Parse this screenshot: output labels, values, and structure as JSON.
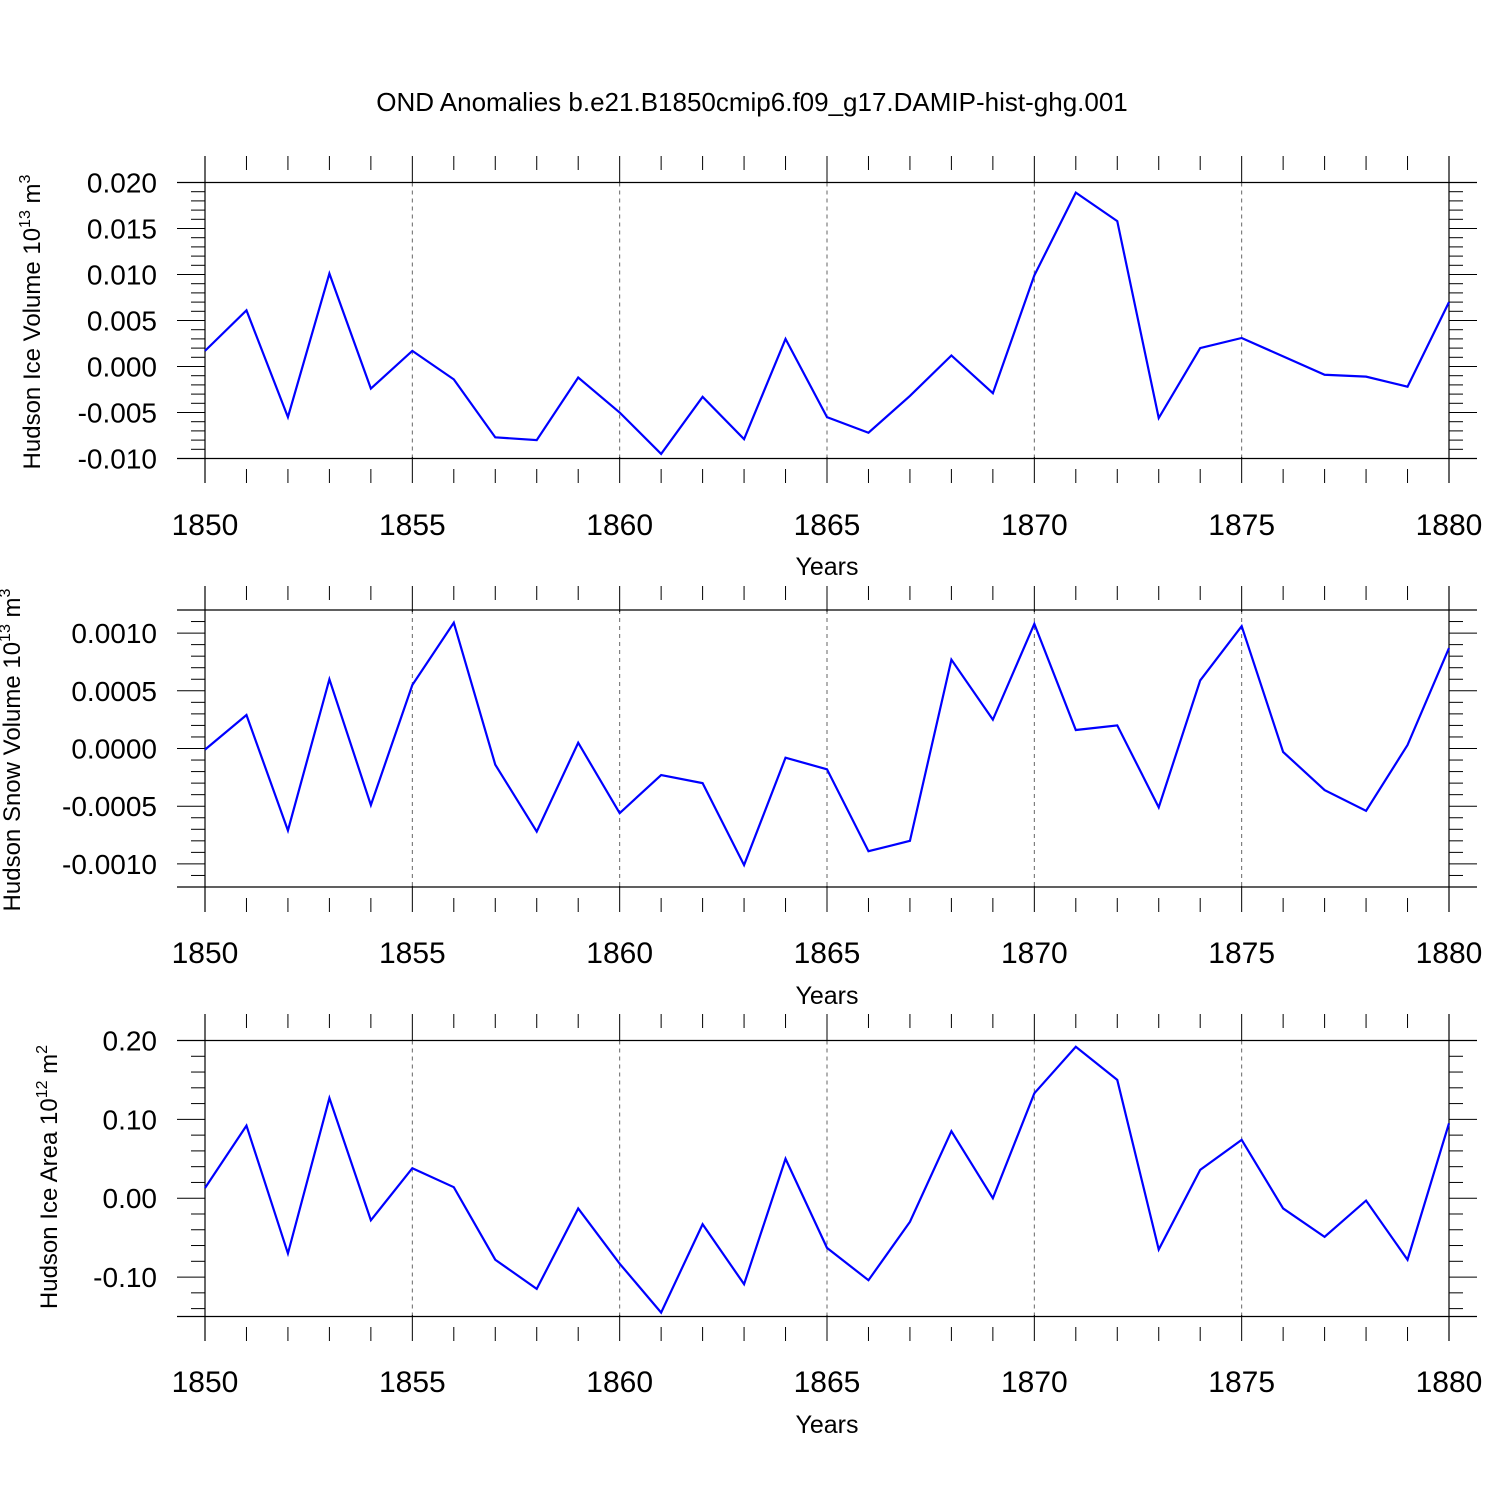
{
  "title": "OND Anomalies b.e21.B1850cmip6.f09_g17.DAMIP-hist-ghg.001",
  "chart_data": [
    {
      "type": "line",
      "title": "OND Anomalies b.e21.B1850cmip6.f09_g17.DAMIP-hist-ghg.001",
      "xlabel": "Years",
      "ylabel": "Hudson Ice Volume 10",
      "ylabel_exp": "13",
      "ylabel_unit": " m",
      "ylabel_unit_exp": "3",
      "x": [
        1850,
        1851,
        1852,
        1853,
        1854,
        1855,
        1856,
        1857,
        1858,
        1859,
        1860,
        1861,
        1862,
        1863,
        1864,
        1865,
        1866,
        1867,
        1868,
        1869,
        1870,
        1871,
        1872,
        1873,
        1874,
        1875,
        1876,
        1877,
        1878,
        1879,
        1880
      ],
      "series": [
        {
          "name": "Hudson Ice Volume",
          "color": "#0000ff",
          "values": [
            0.0017,
            0.0061,
            -0.0055,
            0.0101,
            -0.0024,
            0.0017,
            -0.0014,
            -0.0077,
            -0.008,
            -0.0012,
            -0.005,
            -0.0095,
            -0.0033,
            -0.0079,
            0.003,
            -0.0055,
            -0.0072,
            -0.0032,
            0.0012,
            -0.0029,
            0.0099,
            0.0189,
            0.0158,
            -0.0056,
            0.002,
            0.0031,
            0.0011,
            -0.0009,
            -0.0011,
            -0.0022,
            0.007
          ]
        }
      ],
      "xlim": [
        1850,
        1880
      ],
      "ylim": [
        -0.01,
        0.02
      ],
      "xticks": [
        "1850",
        "1855",
        "1860",
        "1865",
        "1870",
        "1875",
        "1880"
      ],
      "yticks": [
        "0.020",
        "0.015",
        "0.010",
        "0.005",
        "0.000",
        "-0.005",
        "-0.010"
      ],
      "ytick_values": [
        0.02,
        0.015,
        0.01,
        0.005,
        0.0,
        -0.005,
        -0.01
      ],
      "ref_lines": [
        0.02,
        -0.01
      ],
      "grid": "vertical dashed at major x ticks"
    },
    {
      "type": "line",
      "xlabel": "Years",
      "ylabel": "Hudson Snow Volume 10",
      "ylabel_exp": "13",
      "ylabel_unit": " m",
      "ylabel_unit_exp": "3",
      "x": [
        1850,
        1851,
        1852,
        1853,
        1854,
        1855,
        1856,
        1857,
        1858,
        1859,
        1860,
        1861,
        1862,
        1863,
        1864,
        1865,
        1866,
        1867,
        1868,
        1869,
        1870,
        1871,
        1872,
        1873,
        1874,
        1875,
        1876,
        1877,
        1878,
        1879,
        1880
      ],
      "series": [
        {
          "name": "Hudson Snow Volume",
          "color": "#0000ff",
          "values": [
            -1e-05,
            0.00029,
            -0.00071,
            0.0006,
            -0.00049,
            0.00055,
            0.00109,
            -0.00014,
            -0.00072,
            5e-05,
            -0.00056,
            -0.00023,
            -0.0003,
            -0.00101,
            -8e-05,
            -0.00018,
            -0.00089,
            -0.0008,
            0.00077,
            0.00025,
            0.00108,
            0.00016,
            0.0002,
            -0.00051,
            0.00059,
            0.00106,
            -3e-05,
            -0.00036,
            -0.00054,
            3e-05,
            0.00087
          ]
        }
      ],
      "xlim": [
        1850,
        1880
      ],
      "ylim": [
        -0.0012,
        0.0012
      ],
      "xticks": [
        "1850",
        "1855",
        "1860",
        "1865",
        "1870",
        "1875",
        "1880"
      ],
      "yticks": [
        "0.0010",
        "0.0005",
        "0.0000",
        "-0.0005",
        "-0.0010"
      ],
      "ytick_values": [
        0.001,
        0.0005,
        0.0,
        -0.0005,
        -0.001
      ],
      "ref_lines": [
        0.0012,
        -0.0012
      ],
      "grid": "vertical dashed at major x ticks"
    },
    {
      "type": "line",
      "xlabel": "Years",
      "ylabel": "Hudson Ice Area 10",
      "ylabel_exp": "12",
      "ylabel_unit": " m",
      "ylabel_unit_exp": "2",
      "x": [
        1850,
        1851,
        1852,
        1853,
        1854,
        1855,
        1856,
        1857,
        1858,
        1859,
        1860,
        1861,
        1862,
        1863,
        1864,
        1865,
        1866,
        1867,
        1868,
        1869,
        1870,
        1871,
        1872,
        1873,
        1874,
        1875,
        1876,
        1877,
        1878,
        1879,
        1880
      ],
      "series": [
        {
          "name": "Hudson Ice Area",
          "color": "#0000ff",
          "values": [
            0.013,
            0.092,
            -0.07,
            0.127,
            -0.028,
            0.038,
            0.014,
            -0.078,
            -0.115,
            -0.013,
            -0.083,
            -0.145,
            -0.033,
            -0.109,
            0.05,
            -0.063,
            -0.104,
            -0.03,
            0.085,
            0.0,
            0.133,
            0.192,
            0.15,
            -0.065,
            0.036,
            0.074,
            -0.013,
            -0.049,
            -0.003,
            -0.078,
            0.095
          ]
        }
      ],
      "xlim": [
        1850,
        1880
      ],
      "ylim": [
        -0.15,
        0.2
      ],
      "xticks": [
        "1850",
        "1855",
        "1860",
        "1865",
        "1870",
        "1875",
        "1880"
      ],
      "yticks": [
        "0.20",
        "0.10",
        "0.00",
        "-0.10"
      ],
      "ytick_values": [
        0.2,
        0.1,
        0.0,
        -0.1
      ],
      "ref_lines": [
        0.2,
        -0.15
      ],
      "grid": "vertical dashed at major x ticks"
    }
  ]
}
